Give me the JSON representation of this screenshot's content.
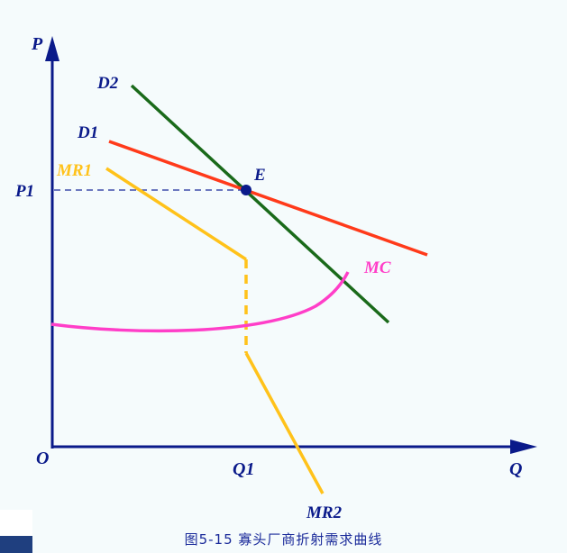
{
  "diagram": {
    "axes": {
      "y_label": "P",
      "x_label": "Q",
      "origin_label": "O"
    },
    "price_level_label": "P1",
    "quantity_level_label": "Q1",
    "equilibrium_label": "E",
    "curves": {
      "d2": {
        "label": "D2",
        "color": "#1a6a1a"
      },
      "d1": {
        "label": "D1",
        "color": "#ff3a1a"
      },
      "mr1": {
        "label": "MR1",
        "color": "#ffc21a"
      },
      "mr2": {
        "label": "MR2",
        "color": "#ffc21a"
      },
      "mc": {
        "label": "MC",
        "color": "#ff3ec8"
      }
    },
    "axis_color": "#0a1a8a",
    "label_color": "#0a1a8a",
    "caption": "图5-15  寡头厂商折射需求曲线"
  }
}
